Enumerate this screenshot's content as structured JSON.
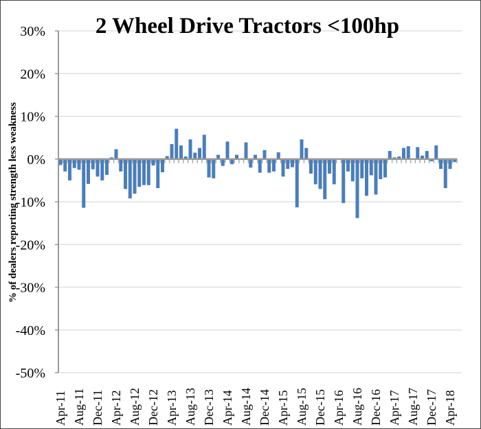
{
  "chart_data": {
    "type": "bar",
    "title": "2 Wheel Drive Tractors <100hp",
    "xlabel": "",
    "ylabel": "% of dealers reporting strength less weakness",
    "ylim": [
      -50,
      30
    ],
    "yticks": [
      30,
      20,
      10,
      0,
      -10,
      -20,
      -30,
      -40,
      -50
    ],
    "ytick_labels": [
      "30%",
      "20%",
      "10%",
      "0%",
      "-10%",
      "-20%",
      "-30%",
      "-40%",
      "-50%"
    ],
    "start_month": "Apr-11",
    "xtick_labels": [
      "Apr-11",
      "Aug-11",
      "Dec-11",
      "Apr-12",
      "Aug-12",
      "Dec-12",
      "Apr-13",
      "Aug-13",
      "Dec-13",
      "Apr-14",
      "Aug-14",
      "Dec-14",
      "Apr-15",
      "Aug-15",
      "Dec-15",
      "Apr-16",
      "Aug-16",
      "Dec-16",
      "Apr-17",
      "Aug-17",
      "Dec-17",
      "Apr-18"
    ],
    "xtick_every_months": 4,
    "grid": "horizontal",
    "series": [
      {
        "name": "% of dealers reporting strength less weakness",
        "color": "#4a7ebb",
        "values": [
          -1.4,
          -2.9,
          -5.0,
          -2.1,
          -2.5,
          -11.4,
          -5.8,
          -2.4,
          -4.1,
          -5.0,
          -3.7,
          0.4,
          2.3,
          -2.9,
          -7.0,
          -9.2,
          -8.1,
          -6.5,
          -6.1,
          -6.1,
          -1.5,
          -6.8,
          -3.1,
          0.7,
          3.5,
          7.1,
          3.2,
          0.6,
          4.6,
          1.5,
          2.6,
          5.7,
          -4.3,
          -4.5,
          1.0,
          -1.6,
          4.1,
          -1.2,
          1.0,
          0.0,
          3.9,
          -2.0,
          1.0,
          -3.2,
          2.1,
          -3.2,
          -2.9,
          1.6,
          -4.1,
          -2.3,
          -1.9,
          -11.3,
          4.6,
          2.6,
          -3.4,
          -5.9,
          -7.0,
          -9.4,
          -3.4,
          -5.9,
          0.0,
          -10.3,
          -2.9,
          -5.2,
          -13.8,
          -4.5,
          -8.6,
          -3.8,
          -8.3,
          -4.7,
          -4.3,
          1.9,
          0.4,
          0.6,
          2.6,
          3.0,
          -0.2,
          2.8,
          0.8,
          1.9,
          -0.5,
          3.2,
          -2.3,
          -6.8,
          -2.3,
          -0.7
        ]
      }
    ]
  }
}
